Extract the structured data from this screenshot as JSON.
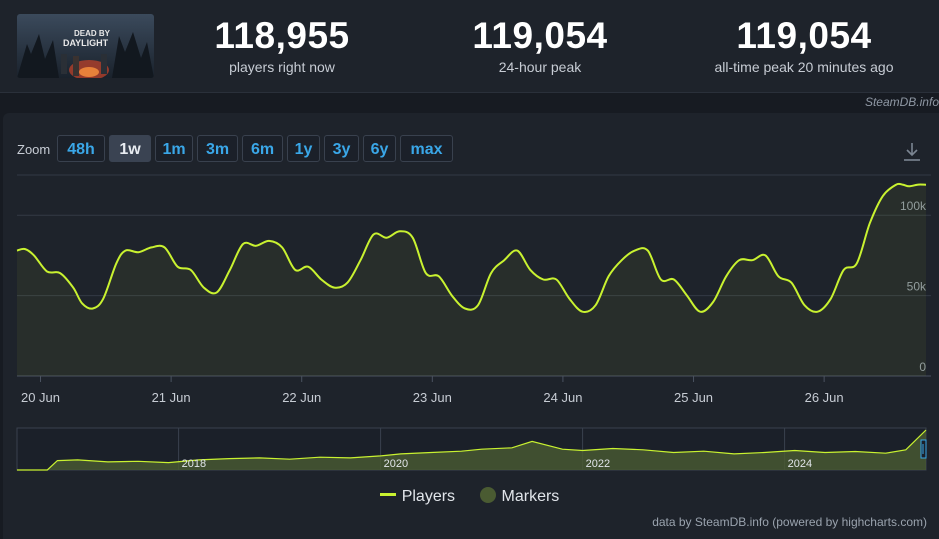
{
  "stats": [
    {
      "value": "118,955",
      "label": "players right now"
    },
    {
      "value": "119,054",
      "label": "24-hour peak"
    },
    {
      "value": "119,054",
      "label": "all-time peak 20 minutes ago"
    }
  ],
  "game_logo_text": [
    "DEAD BY",
    "DAYLIGHT"
  ],
  "credit_top": "SteamDB.info",
  "zoom": {
    "label": "Zoom",
    "buttons": [
      "48h",
      "1w",
      "1m",
      "3m",
      "6m",
      "1y",
      "3y",
      "6y",
      "max"
    ],
    "active": "1w"
  },
  "legend": {
    "players": "Players",
    "markers": "Markers"
  },
  "credit_bottom": "data by SteamDB.info (powered by highcharts.com)",
  "colors": {
    "line": "#c9f230",
    "marker": "#4a5b32",
    "accent": "#3aa7e8"
  },
  "chart_data": {
    "type": "line",
    "series": [
      {
        "name": "Players"
      }
    ],
    "x_unit": "days since 19 Jun 00:00",
    "x_ticks": [
      {
        "x": 1,
        "label": "20 Jun"
      },
      {
        "x": 2,
        "label": "21 Jun"
      },
      {
        "x": 3,
        "label": "22 Jun"
      },
      {
        "x": 4,
        "label": "23 Jun"
      },
      {
        "x": 5,
        "label": "24 Jun"
      },
      {
        "x": 6,
        "label": "25 Jun"
      },
      {
        "x": 7,
        "label": "26 Jun"
      }
    ],
    "y_ticks": [
      {
        "y": 0,
        "label": "0"
      },
      {
        "y": 50000,
        "label": "50k"
      },
      {
        "y": 100000,
        "label": "100k"
      }
    ],
    "ylim": [
      0,
      125000
    ],
    "x": [
      0.82,
      0.88,
      0.95,
      1.05,
      1.15,
      1.25,
      1.32,
      1.4,
      1.48,
      1.58,
      1.65,
      1.75,
      1.85,
      1.95,
      2.05,
      2.15,
      2.25,
      2.35,
      2.45,
      2.55,
      2.65,
      2.75,
      2.85,
      2.95,
      3.05,
      3.15,
      3.25,
      3.35,
      3.45,
      3.55,
      3.65,
      3.75,
      3.85,
      3.95,
      4.05,
      4.15,
      4.25,
      4.35,
      4.45,
      4.55,
      4.65,
      4.75,
      4.85,
      4.95,
      5.05,
      5.15,
      5.25,
      5.35,
      5.45,
      5.55,
      5.65,
      5.75,
      5.85,
      5.95,
      6.05,
      6.15,
      6.25,
      6.35,
      6.45,
      6.55,
      6.65,
      6.75,
      6.85,
      6.95,
      7.05,
      7.15,
      7.25,
      7.35,
      7.45,
      7.55,
      7.6,
      7.65,
      7.72,
      7.78
    ],
    "values": [
      78000,
      79000,
      75000,
      65000,
      64000,
      55000,
      45000,
      42000,
      48000,
      70000,
      78000,
      77000,
      80000,
      80000,
      68000,
      66000,
      55000,
      52000,
      66000,
      82000,
      81000,
      84000,
      80000,
      66000,
      68000,
      60000,
      55000,
      58000,
      72000,
      88000,
      86000,
      90000,
      86000,
      64000,
      62000,
      50000,
      42000,
      44000,
      64000,
      72000,
      78000,
      66000,
      60000,
      60000,
      48000,
      40000,
      44000,
      62000,
      72000,
      78000,
      78000,
      60000,
      60000,
      50000,
      40000,
      46000,
      62000,
      72000,
      72000,
      75000,
      62000,
      58000,
      44000,
      40000,
      48000,
      66000,
      70000,
      95000,
      112000,
      118955,
      119054,
      118000,
      119000,
      118955
    ],
    "navigator": {
      "x_ticks": [
        {
          "x": 2018,
          "label": "2018"
        },
        {
          "x": 2020,
          "label": "2020"
        },
        {
          "x": 2022,
          "label": "2022"
        },
        {
          "x": 2024,
          "label": "2024"
        }
      ],
      "x": [
        2016.4,
        2016.7,
        2016.8,
        2017.0,
        2017.3,
        2017.6,
        2017.9,
        2018.2,
        2018.5,
        2018.8,
        2019.1,
        2019.4,
        2019.7,
        2020.0,
        2020.2,
        2020.5,
        2020.8,
        2021.0,
        2021.3,
        2021.5,
        2021.8,
        2022.0,
        2022.3,
        2022.6,
        2022.9,
        2023.2,
        2023.5,
        2023.8,
        2024.1,
        2024.4,
        2024.7,
        2025.0,
        2025.2,
        2025.4
      ],
      "values": [
        0,
        0,
        28000,
        30000,
        24000,
        26000,
        22000,
        30000,
        34000,
        36000,
        32000,
        38000,
        36000,
        42000,
        48000,
        52000,
        56000,
        62000,
        66000,
        85000,
        62000,
        58000,
        64000,
        60000,
        52000,
        56000,
        48000,
        52000,
        58000,
        52000,
        55000,
        50000,
        60000,
        119054
      ]
    }
  }
}
